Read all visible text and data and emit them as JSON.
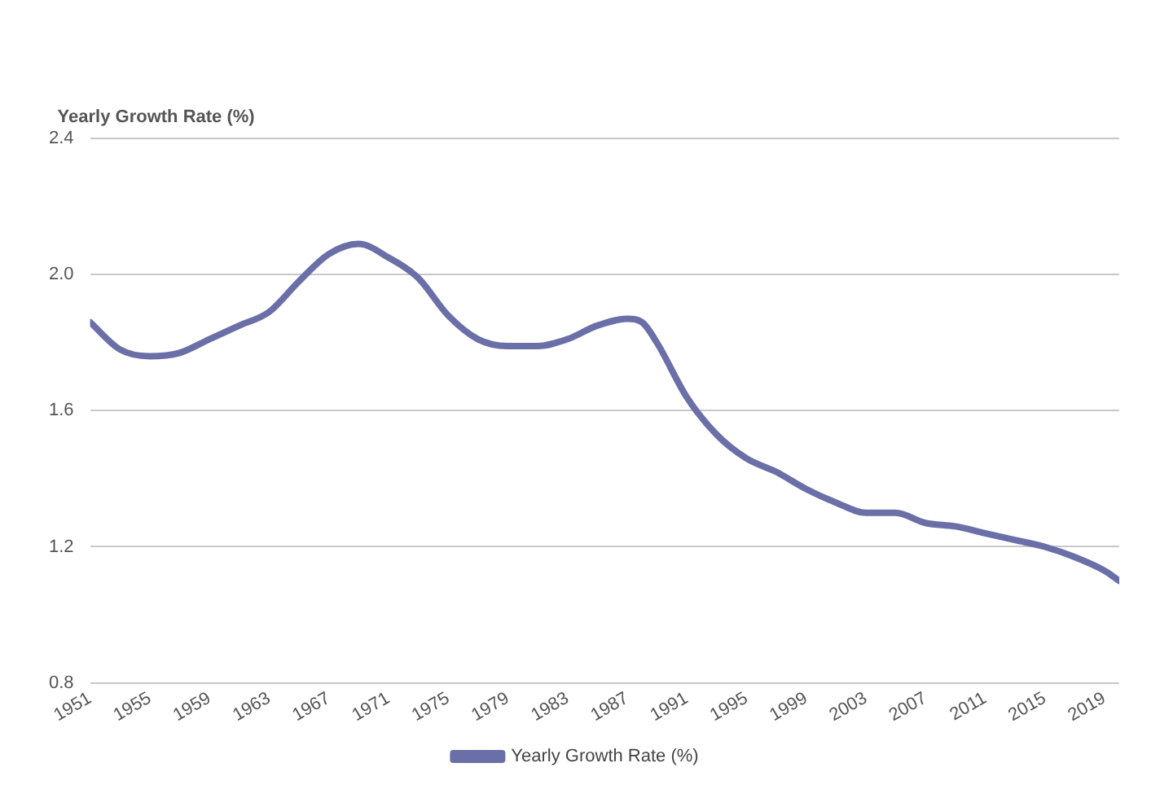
{
  "chart_data": {
    "type": "line",
    "ylabel": "Yearly Growth Rate (%)",
    "x": [
      1951,
      1953,
      1955,
      1957,
      1959,
      1961,
      1963,
      1965,
      1967,
      1969,
      1971,
      1973,
      1975,
      1977,
      1979,
      1981,
      1983,
      1985,
      1987,
      1988,
      1989,
      1991,
      1993,
      1995,
      1997,
      1999,
      2001,
      2003,
      2005,
      2007,
      2009,
      2011,
      2013,
      2015,
      2017,
      2019,
      2020
    ],
    "series": [
      {
        "name": "Yearly Growth Rate (%)",
        "color": "#6b6fa8",
        "values": [
          1.86,
          1.78,
          1.76,
          1.77,
          1.81,
          1.85,
          1.89,
          1.98,
          2.06,
          2.09,
          2.05,
          1.99,
          1.88,
          1.81,
          1.79,
          1.79,
          1.81,
          1.85,
          1.87,
          1.86,
          1.8,
          1.64,
          1.53,
          1.46,
          1.42,
          1.37,
          1.33,
          1.3,
          1.3,
          1.27,
          1.26,
          1.24,
          1.22,
          1.2,
          1.17,
          1.13,
          1.1
        ]
      }
    ],
    "xlim": [
      1951,
      2020
    ],
    "xticks": [
      1951,
      1955,
      1959,
      1963,
      1967,
      1971,
      1975,
      1979,
      1983,
      1987,
      1991,
      1995,
      1999,
      2003,
      2007,
      2011,
      2015,
      2019
    ],
    "ylim": [
      0.8,
      2.4
    ],
    "yticks": [
      0.8,
      1.2,
      1.6,
      {
        "value": 2,
        "label": "2.0"
      },
      2.4
    ],
    "grid": "y",
    "legend": "bottom",
    "marker": "none",
    "line_style": "solid"
  }
}
